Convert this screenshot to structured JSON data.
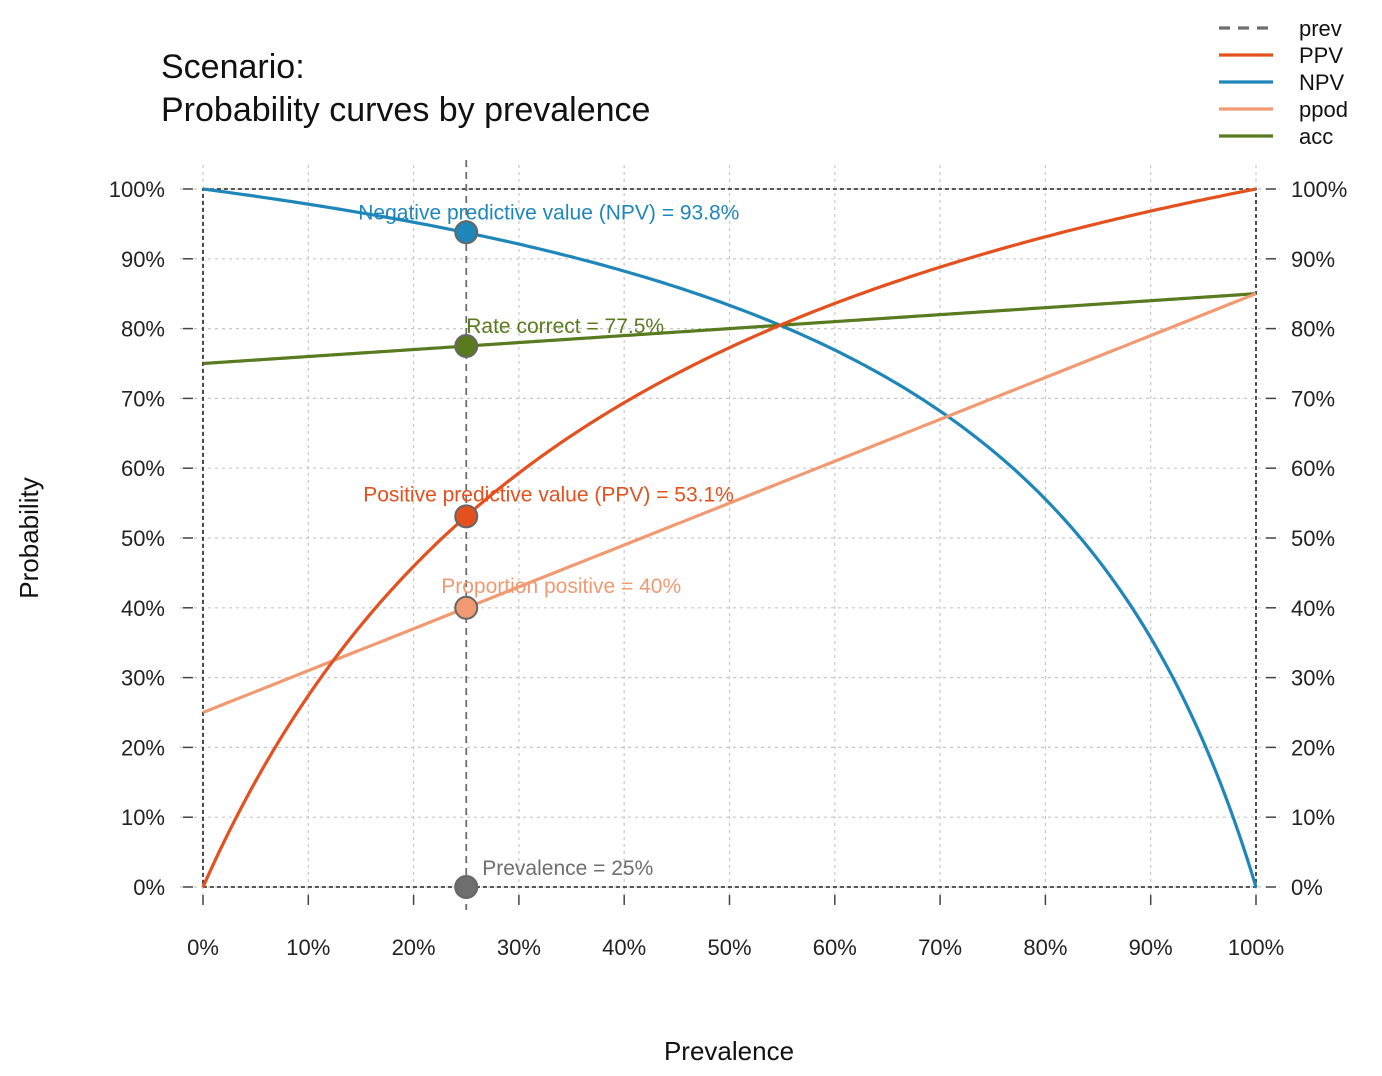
{
  "chart_data": {
    "type": "line",
    "title_line1": "Scenario:",
    "title_line2": "Probability curves by prevalence",
    "xlabel": "Prevalence",
    "ylabel": "Probability",
    "xlim": [
      0,
      1
    ],
    "ylim": [
      0,
      1
    ],
    "x_ticks": [
      "0%",
      "10%",
      "20%",
      "30%",
      "40%",
      "50%",
      "60%",
      "70%",
      "80%",
      "90%",
      "100%"
    ],
    "y_ticks": [
      "0%",
      "10%",
      "20%",
      "30%",
      "40%",
      "50%",
      "60%",
      "70%",
      "80%",
      "90%",
      "100%"
    ],
    "grid": true,
    "legend_position": "top-right",
    "legend": [
      {
        "key": "prev",
        "label": "prev",
        "color": "#6e6e6e",
        "dashed": true
      },
      {
        "key": "PPV",
        "label": "PPV",
        "color": "#e4501e",
        "dashed": false
      },
      {
        "key": "NPV",
        "label": "NPV",
        "color": "#1f86ba",
        "dashed": false
      },
      {
        "key": "ppod",
        "label": "ppod",
        "color": "#f19a72",
        "dashed": false
      },
      {
        "key": "acc",
        "label": "acc",
        "color": "#597a1e",
        "dashed": false
      }
    ],
    "model": {
      "sensitivity": 0.85,
      "specificity": 0.75
    },
    "prevalence": 0.25,
    "point_color_prev": "#6e6e6e",
    "annotations": [
      {
        "key": "NPV",
        "text": "Negative predictive value (NPV) = 93.8%",
        "x": 0.25,
        "y": 0.938,
        "color": "#1f86ba"
      },
      {
        "key": "acc",
        "text": "Rate correct = 77.5%",
        "x": 0.25,
        "y": 0.775,
        "color": "#597a1e"
      },
      {
        "key": "PPV",
        "text": "Positive predictive value (PPV) = 53.1%",
        "x": 0.25,
        "y": 0.531,
        "color": "#e4501e"
      },
      {
        "key": "ppod",
        "text": "Proportion positive = 40%",
        "x": 0.25,
        "y": 0.4,
        "color": "#f19a72"
      },
      {
        "key": "prev",
        "text": "Prevalence = 25%",
        "x": 0.25,
        "y": 0.0,
        "color": "#6e6e6e"
      }
    ]
  }
}
